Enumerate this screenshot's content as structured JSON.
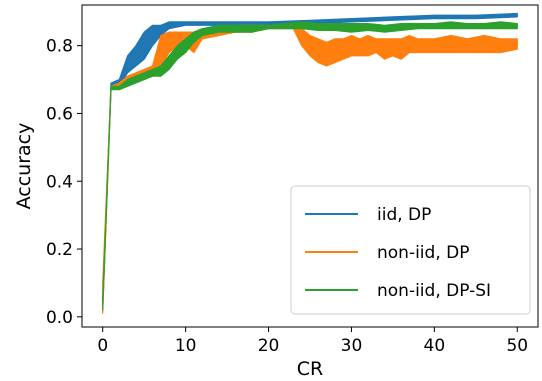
{
  "chart_data": {
    "type": "area",
    "xlabel": "CR",
    "ylabel": "Accuracy",
    "xlim": [
      -2.5,
      52.5
    ],
    "ylim": [
      -0.03,
      0.92
    ],
    "xticks": [
      0,
      10,
      20,
      30,
      40,
      50
    ],
    "yticks": [
      0.0,
      0.2,
      0.4,
      0.6,
      0.8
    ],
    "ytick_labels": [
      "0.0",
      "0.2",
      "0.4",
      "0.6",
      "0.8"
    ],
    "grid": false,
    "legend_position": "lower-right",
    "series": [
      {
        "name": "iid, DP",
        "color": "#1f77b4",
        "points": [
          [
            0,
            0.02,
            0.05
          ],
          [
            1,
            0.68,
            0.69
          ],
          [
            2,
            0.68,
            0.7
          ],
          [
            3,
            0.72,
            0.77
          ],
          [
            4,
            0.74,
            0.8
          ],
          [
            5,
            0.76,
            0.84
          ],
          [
            6,
            0.8,
            0.86
          ],
          [
            7,
            0.83,
            0.86
          ],
          [
            8,
            0.85,
            0.87
          ],
          [
            10,
            0.86,
            0.87
          ],
          [
            15,
            0.86,
            0.87
          ],
          [
            20,
            0.86,
            0.87
          ],
          [
            25,
            0.865,
            0.875
          ],
          [
            30,
            0.87,
            0.88
          ],
          [
            35,
            0.875,
            0.885
          ],
          [
            40,
            0.88,
            0.89
          ],
          [
            45,
            0.88,
            0.89
          ],
          [
            50,
            0.885,
            0.895
          ]
        ]
      },
      {
        "name": "non-iid, DP",
        "color": "#ff7f0e",
        "points": [
          [
            0,
            0.01,
            0.1
          ],
          [
            1,
            0.67,
            0.68
          ],
          [
            2,
            0.68,
            0.69
          ],
          [
            3,
            0.69,
            0.71
          ],
          [
            4,
            0.7,
            0.72
          ],
          [
            5,
            0.7,
            0.73
          ],
          [
            6,
            0.71,
            0.74
          ],
          [
            7,
            0.74,
            0.83
          ],
          [
            8,
            0.78,
            0.84
          ],
          [
            9,
            0.8,
            0.84
          ],
          [
            10,
            0.8,
            0.84
          ],
          [
            11,
            0.78,
            0.84
          ],
          [
            12,
            0.82,
            0.85
          ],
          [
            14,
            0.83,
            0.85
          ],
          [
            16,
            0.84,
            0.86
          ],
          [
            18,
            0.84,
            0.86
          ],
          [
            20,
            0.85,
            0.86
          ],
          [
            22,
            0.85,
            0.86
          ],
          [
            23,
            0.85,
            0.865
          ],
          [
            24,
            0.8,
            0.85
          ],
          [
            25,
            0.77,
            0.83
          ],
          [
            26,
            0.75,
            0.82
          ],
          [
            27,
            0.74,
            0.81
          ],
          [
            28,
            0.75,
            0.82
          ],
          [
            29,
            0.76,
            0.82
          ],
          [
            30,
            0.77,
            0.83
          ],
          [
            31,
            0.77,
            0.82
          ],
          [
            32,
            0.77,
            0.83
          ],
          [
            33,
            0.78,
            0.82
          ],
          [
            34,
            0.76,
            0.82
          ],
          [
            35,
            0.77,
            0.82
          ],
          [
            36,
            0.76,
            0.82
          ],
          [
            37,
            0.78,
            0.83
          ],
          [
            38,
            0.78,
            0.82
          ],
          [
            40,
            0.78,
            0.82
          ],
          [
            42,
            0.78,
            0.83
          ],
          [
            44,
            0.78,
            0.82
          ],
          [
            46,
            0.78,
            0.83
          ],
          [
            48,
            0.78,
            0.82
          ],
          [
            50,
            0.79,
            0.82
          ]
        ]
      },
      {
        "name": "non-iid, DP-SI",
        "color": "#2ca02c",
        "points": [
          [
            0,
            0.02,
            0.05
          ],
          [
            1,
            0.67,
            0.68
          ],
          [
            2,
            0.67,
            0.68
          ],
          [
            3,
            0.68,
            0.7
          ],
          [
            4,
            0.69,
            0.71
          ],
          [
            5,
            0.7,
            0.72
          ],
          [
            6,
            0.71,
            0.73
          ],
          [
            7,
            0.71,
            0.74
          ],
          [
            8,
            0.73,
            0.77
          ],
          [
            9,
            0.76,
            0.8
          ],
          [
            10,
            0.78,
            0.82
          ],
          [
            11,
            0.81,
            0.84
          ],
          [
            12,
            0.83,
            0.85
          ],
          [
            14,
            0.84,
            0.86
          ],
          [
            16,
            0.84,
            0.86
          ],
          [
            18,
            0.84,
            0.86
          ],
          [
            20,
            0.85,
            0.86
          ],
          [
            22,
            0.85,
            0.865
          ],
          [
            24,
            0.85,
            0.87
          ],
          [
            26,
            0.845,
            0.865
          ],
          [
            28,
            0.845,
            0.865
          ],
          [
            30,
            0.84,
            0.865
          ],
          [
            32,
            0.845,
            0.865
          ],
          [
            34,
            0.84,
            0.86
          ],
          [
            36,
            0.845,
            0.865
          ],
          [
            38,
            0.85,
            0.865
          ],
          [
            40,
            0.85,
            0.865
          ],
          [
            42,
            0.85,
            0.87
          ],
          [
            44,
            0.85,
            0.865
          ],
          [
            46,
            0.85,
            0.865
          ],
          [
            48,
            0.85,
            0.87
          ],
          [
            50,
            0.85,
            0.865
          ]
        ]
      }
    ]
  }
}
